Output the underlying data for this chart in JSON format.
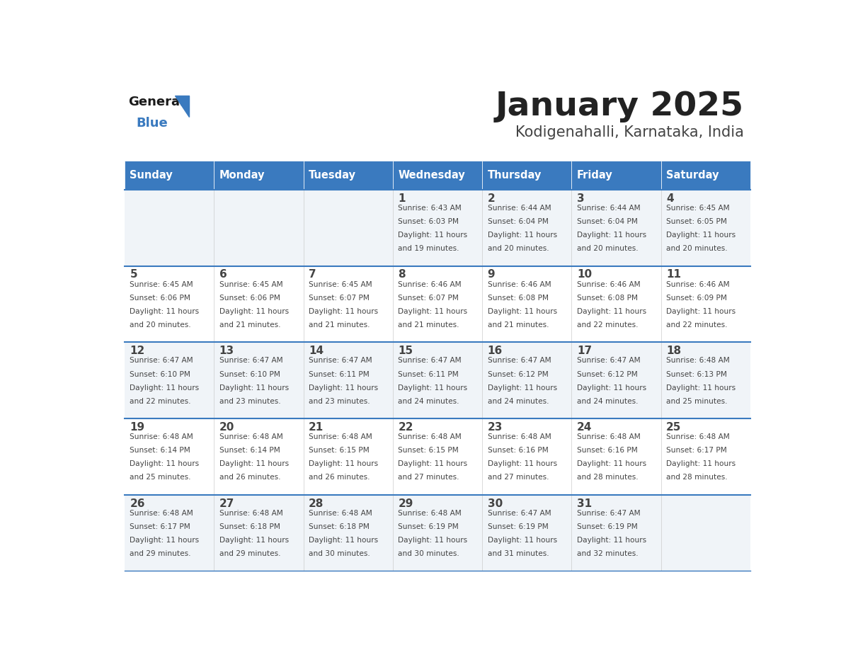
{
  "title": "January 2025",
  "subtitle": "Kodigenahalli, Karnataka, India",
  "header_bg_color": "#3a7abf",
  "header_text_color": "#ffffff",
  "day_names": [
    "Sunday",
    "Monday",
    "Tuesday",
    "Wednesday",
    "Thursday",
    "Friday",
    "Saturday"
  ],
  "row_bg_even": "#f0f4f8",
  "row_bg_odd": "#ffffff",
  "cell_border_color": "#3a7abf",
  "text_color": "#444444",
  "title_color": "#222222",
  "subtitle_color": "#444444",
  "general_text_color": "#1a1a1a",
  "blue_color": "#3a7abf",
  "calendar": [
    [
      {
        "day": "",
        "sunrise": "",
        "sunset": "",
        "daylight": ""
      },
      {
        "day": "",
        "sunrise": "",
        "sunset": "",
        "daylight": ""
      },
      {
        "day": "",
        "sunrise": "",
        "sunset": "",
        "daylight": ""
      },
      {
        "day": "1",
        "sunrise": "6:43 AM",
        "sunset": "6:03 PM",
        "daylight": "11 hours and 19 minutes."
      },
      {
        "day": "2",
        "sunrise": "6:44 AM",
        "sunset": "6:04 PM",
        "daylight": "11 hours and 20 minutes."
      },
      {
        "day": "3",
        "sunrise": "6:44 AM",
        "sunset": "6:04 PM",
        "daylight": "11 hours and 20 minutes."
      },
      {
        "day": "4",
        "sunrise": "6:45 AM",
        "sunset": "6:05 PM",
        "daylight": "11 hours and 20 minutes."
      }
    ],
    [
      {
        "day": "5",
        "sunrise": "6:45 AM",
        "sunset": "6:06 PM",
        "daylight": "11 hours and 20 minutes."
      },
      {
        "day": "6",
        "sunrise": "6:45 AM",
        "sunset": "6:06 PM",
        "daylight": "11 hours and 21 minutes."
      },
      {
        "day": "7",
        "sunrise": "6:45 AM",
        "sunset": "6:07 PM",
        "daylight": "11 hours and 21 minutes."
      },
      {
        "day": "8",
        "sunrise": "6:46 AM",
        "sunset": "6:07 PM",
        "daylight": "11 hours and 21 minutes."
      },
      {
        "day": "9",
        "sunrise": "6:46 AM",
        "sunset": "6:08 PM",
        "daylight": "11 hours and 21 minutes."
      },
      {
        "day": "10",
        "sunrise": "6:46 AM",
        "sunset": "6:08 PM",
        "daylight": "11 hours and 22 minutes."
      },
      {
        "day": "11",
        "sunrise": "6:46 AM",
        "sunset": "6:09 PM",
        "daylight": "11 hours and 22 minutes."
      }
    ],
    [
      {
        "day": "12",
        "sunrise": "6:47 AM",
        "sunset": "6:10 PM",
        "daylight": "11 hours and 22 minutes."
      },
      {
        "day": "13",
        "sunrise": "6:47 AM",
        "sunset": "6:10 PM",
        "daylight": "11 hours and 23 minutes."
      },
      {
        "day": "14",
        "sunrise": "6:47 AM",
        "sunset": "6:11 PM",
        "daylight": "11 hours and 23 minutes."
      },
      {
        "day": "15",
        "sunrise": "6:47 AM",
        "sunset": "6:11 PM",
        "daylight": "11 hours and 24 minutes."
      },
      {
        "day": "16",
        "sunrise": "6:47 AM",
        "sunset": "6:12 PM",
        "daylight": "11 hours and 24 minutes."
      },
      {
        "day": "17",
        "sunrise": "6:47 AM",
        "sunset": "6:12 PM",
        "daylight": "11 hours and 24 minutes."
      },
      {
        "day": "18",
        "sunrise": "6:48 AM",
        "sunset": "6:13 PM",
        "daylight": "11 hours and 25 minutes."
      }
    ],
    [
      {
        "day": "19",
        "sunrise": "6:48 AM",
        "sunset": "6:14 PM",
        "daylight": "11 hours and 25 minutes."
      },
      {
        "day": "20",
        "sunrise": "6:48 AM",
        "sunset": "6:14 PM",
        "daylight": "11 hours and 26 minutes."
      },
      {
        "day": "21",
        "sunrise": "6:48 AM",
        "sunset": "6:15 PM",
        "daylight": "11 hours and 26 minutes."
      },
      {
        "day": "22",
        "sunrise": "6:48 AM",
        "sunset": "6:15 PM",
        "daylight": "11 hours and 27 minutes."
      },
      {
        "day": "23",
        "sunrise": "6:48 AM",
        "sunset": "6:16 PM",
        "daylight": "11 hours and 27 minutes."
      },
      {
        "day": "24",
        "sunrise": "6:48 AM",
        "sunset": "6:16 PM",
        "daylight": "11 hours and 28 minutes."
      },
      {
        "day": "25",
        "sunrise": "6:48 AM",
        "sunset": "6:17 PM",
        "daylight": "11 hours and 28 minutes."
      }
    ],
    [
      {
        "day": "26",
        "sunrise": "6:48 AM",
        "sunset": "6:17 PM",
        "daylight": "11 hours and 29 minutes."
      },
      {
        "day": "27",
        "sunrise": "6:48 AM",
        "sunset": "6:18 PM",
        "daylight": "11 hours and 29 minutes."
      },
      {
        "day": "28",
        "sunrise": "6:48 AM",
        "sunset": "6:18 PM",
        "daylight": "11 hours and 30 minutes."
      },
      {
        "day": "29",
        "sunrise": "6:48 AM",
        "sunset": "6:19 PM",
        "daylight": "11 hours and 30 minutes."
      },
      {
        "day": "30",
        "sunrise": "6:47 AM",
        "sunset": "6:19 PM",
        "daylight": "11 hours and 31 minutes."
      },
      {
        "day": "31",
        "sunrise": "6:47 AM",
        "sunset": "6:19 PM",
        "daylight": "11 hours and 32 minutes."
      },
      {
        "day": "",
        "sunrise": "",
        "sunset": "",
        "daylight": ""
      }
    ]
  ]
}
